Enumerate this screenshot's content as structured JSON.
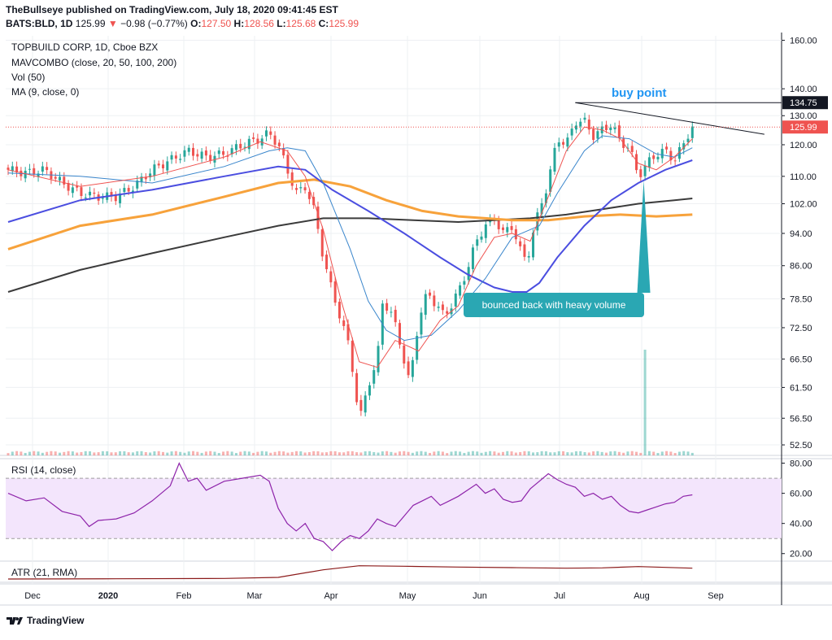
{
  "header": {
    "publisher_line": "TheBullseye published on TradingView.com, July 18, 2020 09:41:45 EST",
    "symbol": "BATS:BLD, 1D",
    "price": "125.99",
    "change": "−0.98 (−0.77%)",
    "open_label": "O:",
    "open": "127.50",
    "high_label": "H:",
    "high": "128.56",
    "low_label": "L:",
    "low": "125.68",
    "close_label": "C:",
    "close": "125.99"
  },
  "legend": {
    "title": "TOPBUILD CORP, 1D, Cboe BZX",
    "mavcombo": "MAVCOMBO (close, 20, 50, 100, 200)",
    "vol": "Vol (50)",
    "ma": "MA (9, close, 0)"
  },
  "rsi_label": "RSI (14, close)",
  "atr_label": "ATR (21, RMA)",
  "annotations": {
    "buy_point": "buy point",
    "bounce_note": "bounced back with heavy volume"
  },
  "price_badges": {
    "resistance": "134.75",
    "last": "125.99"
  },
  "footer_logo": "TradingView",
  "colors": {
    "up": "#26a69a",
    "down": "#ef5350",
    "sma20": "#3a86cc",
    "ma9": "#ef5350",
    "ma50": "#4b4ee0",
    "ma100": "#f7a23b",
    "ma200": "#3b3b3b",
    "rsi": "#8e24aa",
    "rsi_band": "#f3e5fc",
    "atr": "#8b1a1a",
    "buy_point": "#2196f3",
    "callout": "#2aa7b3"
  },
  "chart_data": [
    {
      "type": "candlestick",
      "title": "TOPBUILD CORP, 1D, Cboe BZX",
      "x_tick_labels": [
        "Dec",
        "2020",
        "Feb",
        "Mar",
        "Apr",
        "May",
        "Jun",
        "Jul",
        "Aug",
        "Sep"
      ],
      "y_tick_labels": [
        "160.00",
        "140.00",
        "130.00",
        "120.00",
        "110.00",
        "102.00",
        "94.00",
        "86.00",
        "78.50",
        "72.50",
        "66.50",
        "61.50",
        "56.50",
        "52.50"
      ],
      "y_ticks": [
        160,
        140,
        130,
        120,
        110,
        102,
        94,
        86,
        78.5,
        72.5,
        66.5,
        61.5,
        56.5,
        52.5
      ],
      "scale": "log",
      "ylim": [
        51,
        162
      ],
      "x_range_days": [
        0,
        306
      ],
      "close_path": [
        [
          0,
          112
        ],
        [
          10,
          111
        ],
        [
          20,
          112
        ],
        [
          30,
          108
        ],
        [
          40,
          105
        ],
        [
          50,
          104
        ],
        [
          60,
          104
        ],
        [
          70,
          107
        ],
        [
          80,
          112
        ],
        [
          90,
          115
        ],
        [
          100,
          118
        ],
        [
          110,
          116
        ],
        [
          120,
          117
        ],
        [
          130,
          120
        ],
        [
          140,
          122
        ],
        [
          145,
          124
        ],
        [
          150,
          120
        ],
        [
          155,
          112
        ],
        [
          160,
          105
        ],
        [
          165,
          107
        ],
        [
          170,
          100
        ],
        [
          175,
          88
        ],
        [
          180,
          80
        ],
        [
          185,
          74
        ],
        [
          190,
          68
        ],
        [
          193,
          60
        ],
        [
          196,
          57
        ],
        [
          200,
          62
        ],
        [
          205,
          66
        ],
        [
          208,
          78
        ],
        [
          212,
          76
        ],
        [
          216,
          72
        ],
        [
          220,
          66
        ],
        [
          223,
          62
        ],
        [
          228,
          74
        ],
        [
          233,
          80
        ],
        [
          238,
          77
        ],
        [
          242,
          75
        ],
        [
          246,
          77
        ],
        [
          250,
          80
        ],
        [
          255,
          85
        ],
        [
          260,
          92
        ],
        [
          265,
          96
        ],
        [
          270,
          98
        ],
        [
          275,
          94
        ],
        [
          280,
          96
        ],
        [
          284,
          90
        ],
        [
          288,
          87
        ],
        [
          292,
          95
        ],
        [
          296,
          102
        ],
        [
          300,
          108
        ],
        [
          303,
          117
        ],
        [
          306,
          122
        ],
        [
          310,
          120
        ],
        [
          315,
          128
        ],
        [
          320,
          128
        ],
        [
          325,
          123
        ],
        [
          330,
          125
        ],
        [
          335,
          127
        ],
        [
          340,
          121
        ],
        [
          345,
          119
        ],
        [
          350,
          110
        ],
        [
          355,
          114
        ],
        [
          360,
          117
        ],
        [
          365,
          118
        ],
        [
          370,
          115
        ],
        [
          375,
          120
        ],
        [
          378,
          124
        ],
        [
          380,
          126
        ]
      ],
      "ohlc_count": 160,
      "ma_lines": {
        "ma9": [
          [
            0,
            112
          ],
          [
            40,
            107
          ],
          [
            80,
            110
          ],
          [
            120,
            116
          ],
          [
            140,
            121
          ],
          [
            155,
            118
          ],
          [
            165,
            110
          ],
          [
            175,
            95
          ],
          [
            185,
            78
          ],
          [
            195,
            66
          ],
          [
            205,
            65
          ],
          [
            215,
            70
          ],
          [
            228,
            68
          ],
          [
            240,
            74
          ],
          [
            250,
            77
          ],
          [
            260,
            86
          ],
          [
            270,
            93
          ],
          [
            280,
            94
          ],
          [
            290,
            92
          ],
          [
            300,
            104
          ],
          [
            310,
            118
          ],
          [
            320,
            126
          ],
          [
            330,
            125
          ],
          [
            340,
            122
          ],
          [
            350,
            114
          ],
          [
            360,
            112
          ],
          [
            370,
            116
          ],
          [
            380,
            122
          ]
        ],
        "sma20": [
          [
            0,
            111
          ],
          [
            40,
            110
          ],
          [
            80,
            108
          ],
          [
            120,
            113
          ],
          [
            145,
            118
          ],
          [
            155,
            119
          ],
          [
            165,
            118
          ],
          [
            175,
            108
          ],
          [
            190,
            90
          ],
          [
            200,
            78
          ],
          [
            210,
            72
          ],
          [
            220,
            70
          ],
          [
            235,
            71
          ],
          [
            250,
            76
          ],
          [
            265,
            83
          ],
          [
            280,
            93
          ],
          [
            295,
            96
          ],
          [
            305,
            105
          ],
          [
            320,
            118
          ],
          [
            330,
            123
          ],
          [
            345,
            122
          ],
          [
            360,
            117
          ],
          [
            370,
            116
          ],
          [
            380,
            119
          ]
        ],
        "ma50": [
          [
            0,
            97
          ],
          [
            40,
            103
          ],
          [
            80,
            106
          ],
          [
            120,
            110
          ],
          [
            150,
            113
          ],
          [
            165,
            112
          ],
          [
            180,
            106
          ],
          [
            200,
            100
          ],
          [
            220,
            94
          ],
          [
            240,
            88
          ],
          [
            255,
            84
          ],
          [
            270,
            81
          ],
          [
            280,
            80
          ],
          [
            288,
            80
          ],
          [
            295,
            82
          ],
          [
            305,
            88
          ],
          [
            320,
            96
          ],
          [
            335,
            103
          ],
          [
            350,
            108
          ],
          [
            365,
            112
          ],
          [
            380,
            115
          ]
        ],
        "ma100": [
          [
            0,
            90
          ],
          [
            40,
            96
          ],
          [
            80,
            99
          ],
          [
            120,
            104
          ],
          [
            150,
            108
          ],
          [
            170,
            109
          ],
          [
            190,
            107
          ],
          [
            210,
            103
          ],
          [
            230,
            100
          ],
          [
            250,
            98.5
          ],
          [
            265,
            98
          ],
          [
            280,
            97.5
          ],
          [
            300,
            97.5
          ],
          [
            320,
            98.5
          ],
          [
            340,
            99
          ],
          [
            360,
            98.5
          ],
          [
            380,
            99
          ]
        ],
        "ma200": [
          [
            0,
            80
          ],
          [
            40,
            85
          ],
          [
            80,
            89
          ],
          [
            120,
            93
          ],
          [
            150,
            96
          ],
          [
            175,
            98
          ],
          [
            200,
            98
          ],
          [
            225,
            97.5
          ],
          [
            250,
            97
          ],
          [
            270,
            97.5
          ],
          [
            290,
            98
          ],
          [
            310,
            99
          ],
          [
            330,
            100.5
          ],
          [
            350,
            102
          ],
          [
            370,
            103
          ],
          [
            380,
            103.5
          ]
        ]
      },
      "trendline": [
        [
          315,
          134.75
        ],
        [
          420,
          123.5
        ]
      ],
      "resistance_level": 134.75,
      "last_price": 125.99
    },
    {
      "type": "bar",
      "name": "Vol (50)",
      "spike_day": 353,
      "spike_relative": 1.0,
      "baseline_relative": 0.08
    },
    {
      "type": "line",
      "name": "RSI (14, close)",
      "y_tick_labels": [
        "80.00",
        "60.00",
        "40.00",
        "20.00"
      ],
      "ylim": [
        15,
        83
      ],
      "band": [
        30,
        70
      ],
      "values": [
        [
          0,
          60
        ],
        [
          10,
          55
        ],
        [
          20,
          57
        ],
        [
          30,
          48
        ],
        [
          40,
          45
        ],
        [
          45,
          38
        ],
        [
          50,
          42
        ],
        [
          60,
          43
        ],
        [
          70,
          47
        ],
        [
          80,
          55
        ],
        [
          90,
          65
        ],
        [
          95,
          80
        ],
        [
          100,
          68
        ],
        [
          105,
          70
        ],
        [
          110,
          62
        ],
        [
          120,
          68
        ],
        [
          130,
          70
        ],
        [
          140,
          72
        ],
        [
          145,
          68
        ],
        [
          150,
          50
        ],
        [
          155,
          40
        ],
        [
          160,
          35
        ],
        [
          165,
          40
        ],
        [
          170,
          30
        ],
        [
          175,
          28
        ],
        [
          180,
          22
        ],
        [
          185,
          28
        ],
        [
          190,
          32
        ],
        [
          195,
          30
        ],
        [
          200,
          35
        ],
        [
          205,
          43
        ],
        [
          210,
          40
        ],
        [
          215,
          38
        ],
        [
          220,
          45
        ],
        [
          225,
          52
        ],
        [
          230,
          55
        ],
        [
          235,
          58
        ],
        [
          240,
          52
        ],
        [
          245,
          55
        ],
        [
          250,
          58
        ],
        [
          255,
          62
        ],
        [
          260,
          66
        ],
        [
          265,
          60
        ],
        [
          270,
          63
        ],
        [
          275,
          56
        ],
        [
          280,
          54
        ],
        [
          285,
          55
        ],
        [
          290,
          63
        ],
        [
          295,
          68
        ],
        [
          300,
          73
        ],
        [
          305,
          69
        ],
        [
          310,
          66
        ],
        [
          315,
          64
        ],
        [
          320,
          58
        ],
        [
          325,
          60
        ],
        [
          330,
          56
        ],
        [
          335,
          58
        ],
        [
          340,
          52
        ],
        [
          345,
          48
        ],
        [
          350,
          47
        ],
        [
          355,
          49
        ],
        [
          360,
          51
        ],
        [
          365,
          53
        ],
        [
          370,
          54
        ],
        [
          375,
          58
        ],
        [
          380,
          59
        ]
      ]
    },
    {
      "type": "line",
      "name": "ATR (21, RMA)",
      "values": [
        [
          0,
          2.6
        ],
        [
          60,
          2.7
        ],
        [
          120,
          2.8
        ],
        [
          150,
          3.2
        ],
        [
          175,
          6.0
        ],
        [
          195,
          7.5
        ],
        [
          220,
          7.3
        ],
        [
          250,
          7.0
        ],
        [
          280,
          6.8
        ],
        [
          310,
          6.6
        ],
        [
          330,
          6.7
        ],
        [
          350,
          7.2
        ],
        [
          365,
          6.9
        ],
        [
          380,
          6.6
        ]
      ]
    }
  ]
}
